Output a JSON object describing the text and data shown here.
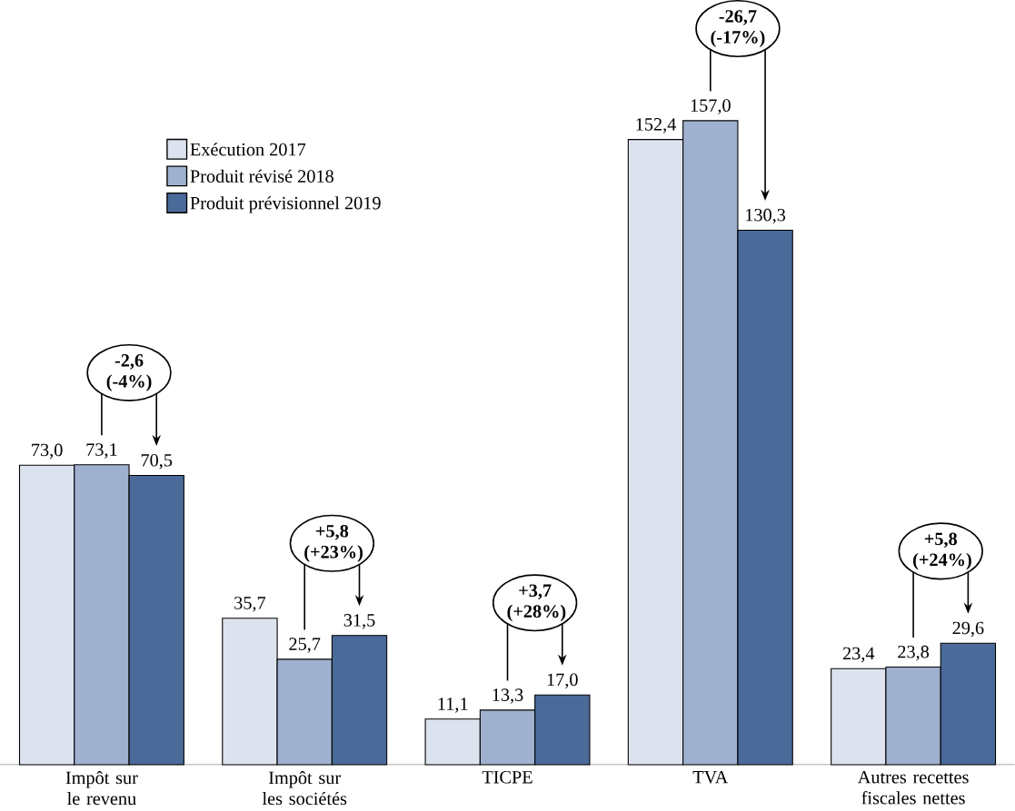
{
  "chart_data": {
    "type": "bar",
    "categories": [
      "Impôt sur le revenu",
      "Impôt sur les sociétés",
      "TICPE",
      "TVA",
      "Autres recettes fiscales nettes"
    ],
    "series": [
      {
        "name": "Exécution 2017",
        "color": "#dde3ee",
        "values": [
          73.0,
          35.7,
          11.1,
          152.4,
          23.4
        ],
        "value_labels": [
          "73,0",
          "35,7",
          "11,1",
          "152,4",
          "23,4"
        ]
      },
      {
        "name": "Produit révisé 2018",
        "color": "#9fb1cf",
        "values": [
          73.1,
          25.7,
          13.3,
          157.0,
          23.8
        ],
        "value_labels": [
          "73,1",
          "25,7",
          "13,3",
          "157,0",
          "23,8"
        ]
      },
      {
        "name": "Produit prévisionnel 2019",
        "color": "#4a6a99",
        "values": [
          70.5,
          31.5,
          17.0,
          130.3,
          29.6
        ],
        "value_labels": [
          "70,5",
          "31,5",
          "17,0",
          "130,3",
          "29,6"
        ]
      }
    ],
    "annotations": [
      "-2,6 (-4%)",
      "+5,8 (+23%)",
      "+3,7 (+28%)",
      "-26,7 (-17%)",
      "+5,8 (+24%)"
    ],
    "legend": "top left"
  }
}
